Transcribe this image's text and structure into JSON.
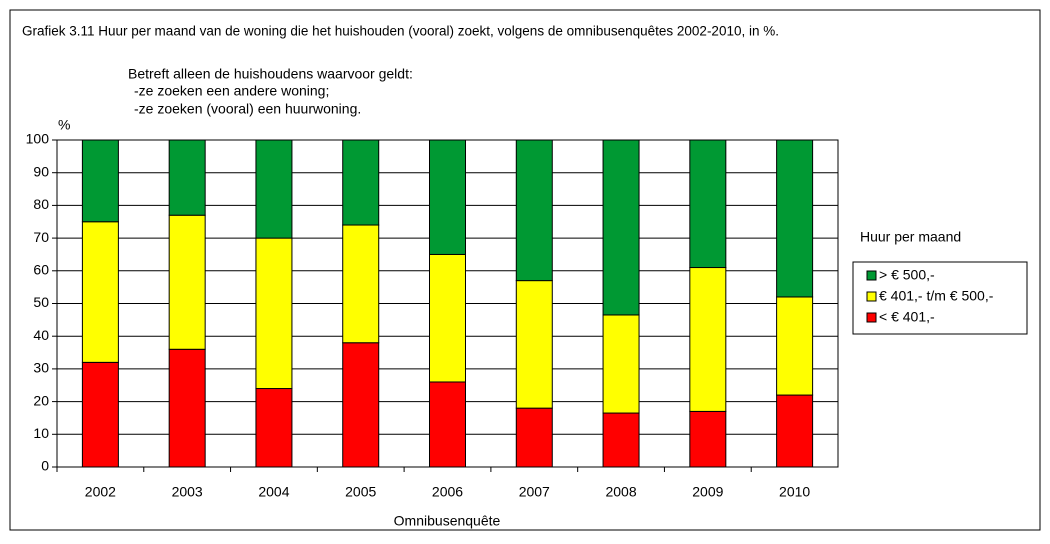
{
  "chart_data": {
    "type": "stacked_bar",
    "title": "Grafiek 3.11 Huur per maand van de woning die het huishouden (vooral) zoekt, volgens de omnibusenquêtes 2002-2010, in %.",
    "notes": [
      "Betreft alleen de huishoudens waarvoor geldt:",
      "-ze zoeken een andere woning;",
      "-ze zoeken (vooral) een huurwoning."
    ],
    "y_label": "%",
    "x_label": "Omnibusenquête",
    "legend_title": "Huur per maand",
    "legend": "right",
    "grid": true,
    "categories": [
      "2002",
      "2003",
      "2004",
      "2005",
      "2006",
      "2007",
      "2008",
      "2009",
      "2010"
    ],
    "series": [
      {
        "name": "< € 401,-",
        "color": "#ff0000",
        "values": [
          32,
          36,
          24,
          38,
          26,
          18,
          16.5,
          17,
          22
        ]
      },
      {
        "name": "€ 401,- t/m € 500,-",
        "color": "#ffff00",
        "values": [
          43,
          41,
          46,
          36,
          39,
          39,
          30,
          44,
          30
        ]
      },
      {
        "name": "> € 500,-",
        "color": "#009933",
        "values": [
          25,
          23,
          30,
          26,
          35,
          43,
          53.5,
          39,
          48
        ]
      }
    ],
    "ylim": [
      0,
      100
    ],
    "yticks": [
      0,
      10,
      20,
      30,
      40,
      50,
      60,
      70,
      80,
      90,
      100
    ]
  }
}
